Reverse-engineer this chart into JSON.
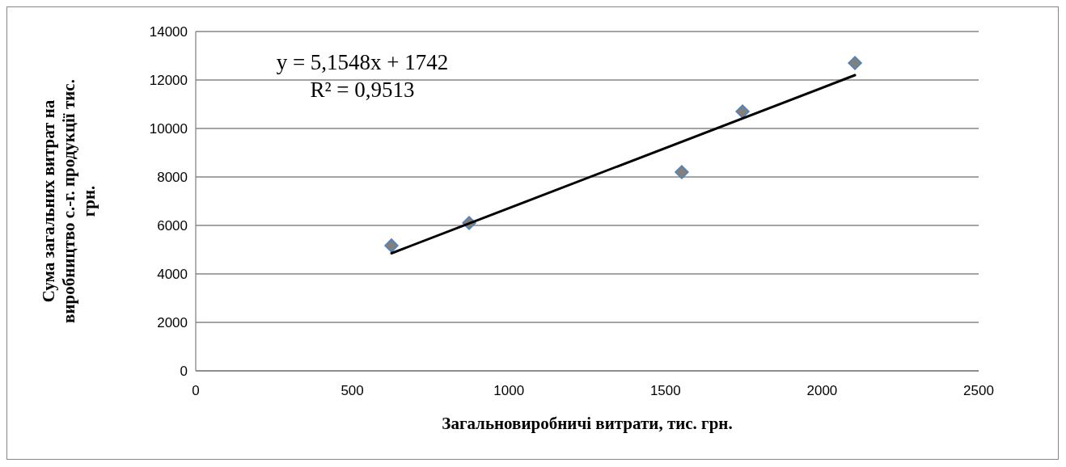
{
  "chart_data": {
    "type": "scatter",
    "xlabel": "Загальновиробничі витрати, тис. грн.",
    "ylabel": "Сума загальних витрат на виробництво с.-г. продукції тис. грн.",
    "annotations": [
      "y = 5,1548x + 1742",
      "R² = 0,9513"
    ],
    "xlim": [
      0,
      2500
    ],
    "xticks": [
      0,
      500,
      1000,
      1500,
      2000,
      2500
    ],
    "ylim": [
      0,
      14000
    ],
    "yticks": [
      0,
      2000,
      4000,
      6000,
      8000,
      10000,
      12000,
      14000
    ],
    "grid": "y",
    "marker": "diamond",
    "series": [
      {
        "color": "#808080",
        "x": [
          625,
          873,
          1552,
          1746,
          2105
        ],
        "values": [
          5170,
          6100,
          8200,
          10700,
          12700
        ]
      },
      {
        "type": "line",
        "marker": "none",
        "color": "#000000",
        "x": [
          625,
          2105
        ],
        "values": [
          4850,
          12200
        ]
      }
    ]
  }
}
